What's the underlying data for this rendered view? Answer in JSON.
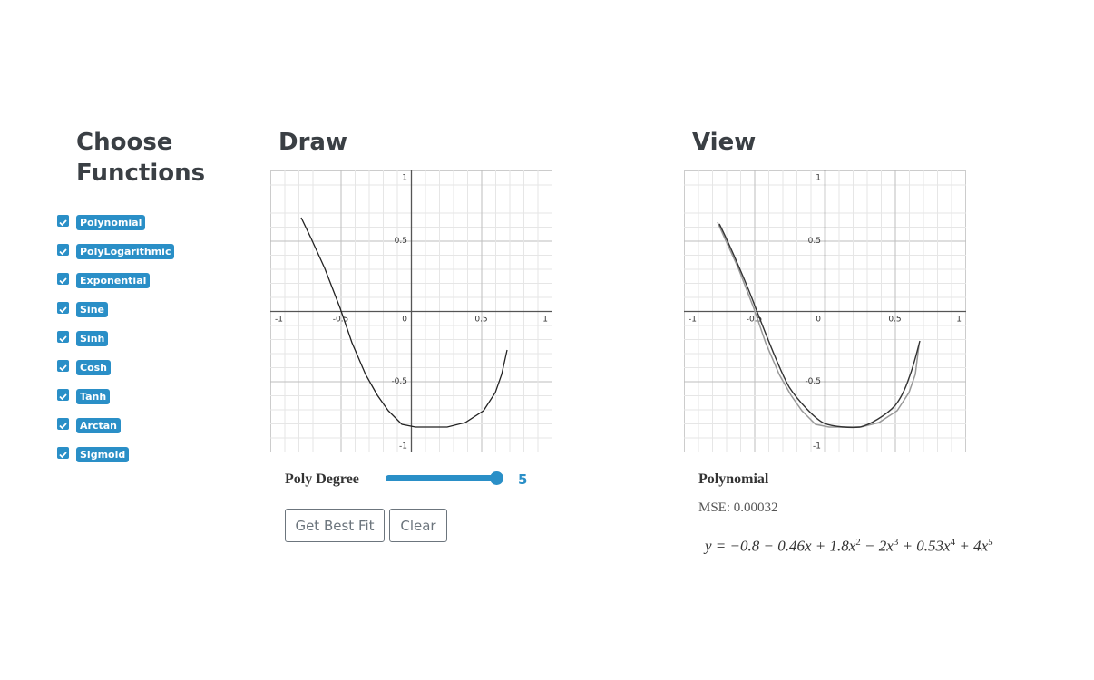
{
  "sidebar": {
    "title": "Choose Functions",
    "functions": [
      {
        "label": "Polynomial",
        "checked": true
      },
      {
        "label": "PolyLogarithmic",
        "checked": true
      },
      {
        "label": "Exponential",
        "checked": true
      },
      {
        "label": "Sine",
        "checked": true
      },
      {
        "label": "Sinh",
        "checked": true
      },
      {
        "label": "Cosh",
        "checked": true
      },
      {
        "label": "Tanh",
        "checked": true
      },
      {
        "label": "Arctan",
        "checked": true
      },
      {
        "label": "Sigmoid",
        "checked": true
      }
    ]
  },
  "draw_panel": {
    "title": "Draw",
    "x_tick_labels": [
      "-1",
      "-0.5",
      "0",
      "0.5",
      "1"
    ],
    "y_tick_labels": [
      "1",
      "0.5",
      "-0.5",
      "-1"
    ],
    "degree_label": "Poly Degree",
    "degree_value": "5",
    "buttons": [
      "Get Best Fit",
      "Clear"
    ]
  },
  "view_panel": {
    "title": "View",
    "x_tick_labels": [
      "-1",
      "-0.5",
      "0",
      "0.5",
      "1"
    ],
    "y_tick_labels": [
      "1",
      "0.5",
      "-0.5",
      "-1"
    ],
    "function_name": "Polynomial",
    "mse": "MSE: 0.00032",
    "equation": [
      {
        "text": "y = −0.8 − 0.46x + 1.8x"
      },
      {
        "sup": "2"
      },
      {
        "text": " − 2x"
      },
      {
        "sup": "3"
      },
      {
        "text": " + 0.53x"
      },
      {
        "sup": "4"
      },
      {
        "text": " + 4x"
      },
      {
        "sup": "5"
      }
    ]
  }
}
